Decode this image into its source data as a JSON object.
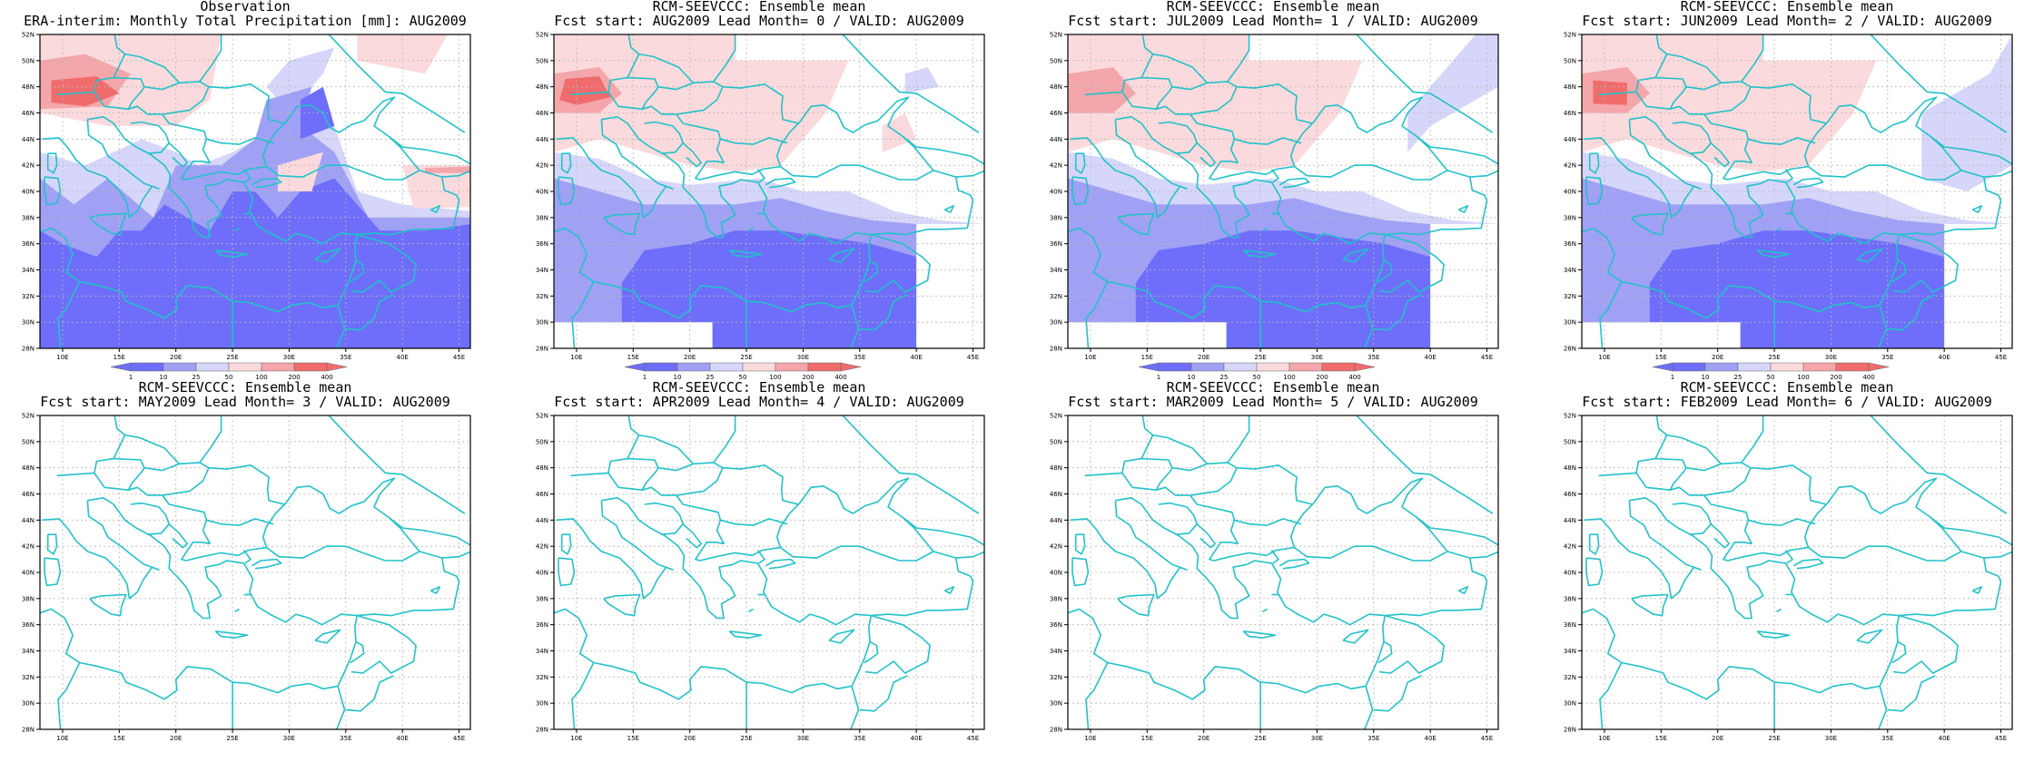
{
  "colors": {
    "blue_strong": "#6e6efa",
    "blue_mid": "#a0a0f5",
    "blue_light": "#d6d6fa",
    "red_light": "#fadadc",
    "red_mid": "#f4a6aa",
    "red_strong": "#f06c6c",
    "coast": "#22c2c8",
    "frame": "#000000",
    "grid": "#b8b8b8"
  },
  "axes": {
    "lon_ticks": [
      "10E",
      "15E",
      "20E",
      "25E",
      "30E",
      "35E",
      "40E",
      "45E"
    ],
    "lat_ticks": [
      "28N",
      "30N",
      "32N",
      "34N",
      "36N",
      "38N",
      "40N",
      "42N",
      "44N",
      "46N",
      "48N",
      "50N",
      "52N"
    ],
    "lon_range": [
      8,
      46
    ],
    "lat_range": [
      28,
      52
    ]
  },
  "colorbar": {
    "labels": [
      "1",
      "10",
      "25",
      "50",
      "100",
      "200",
      "400"
    ]
  },
  "panels": [
    {
      "title_line1": "Observation",
      "title_line2": "ERA-interim:  Monthly Total Precipitation [mm]: AUG2009",
      "filled": true,
      "colorbar": true,
      "variant": 0
    },
    {
      "title_line1": "RCM-SEEVCCC: Ensemble mean",
      "title_line2": "Fcst start: AUG2009   Lead Month= 0 / VALID: AUG2009",
      "filled": true,
      "colorbar": true,
      "variant": 1
    },
    {
      "title_line1": "RCM-SEEVCCC: Ensemble mean",
      "title_line2": "Fcst start: JUL2009   Lead Month= 1 / VALID: AUG2009",
      "filled": true,
      "colorbar": true,
      "variant": 2
    },
    {
      "title_line1": "RCM-SEEVCCC: Ensemble mean",
      "title_line2": "Fcst start: JUN2009   Lead Month= 2 / VALID: AUG2009",
      "filled": true,
      "colorbar": true,
      "variant": 3
    },
    {
      "title_line1": "RCM-SEEVCCC: Ensemble mean",
      "title_line2": "Fcst start: MAY2009   Lead Month= 3 / VALID: AUG2009",
      "filled": false,
      "colorbar": false,
      "variant": 4
    },
    {
      "title_line1": "RCM-SEEVCCC: Ensemble mean",
      "title_line2": "Fcst start: APR2009   Lead Month= 4 / VALID: AUG2009",
      "filled": false,
      "colorbar": false,
      "variant": 5
    },
    {
      "title_line1": "RCM-SEEVCCC: Ensemble mean",
      "title_line2": "Fcst start: MAR2009   Lead Month= 5 / VALID: AUG2009",
      "filled": false,
      "colorbar": false,
      "variant": 6
    },
    {
      "title_line1": "RCM-SEEVCCC: Ensemble mean",
      "title_line2": "Fcst start: FEB2009   Lead Month= 6 / VALID: AUG2009",
      "filled": false,
      "colorbar": false,
      "variant": 7
    }
  ]
}
